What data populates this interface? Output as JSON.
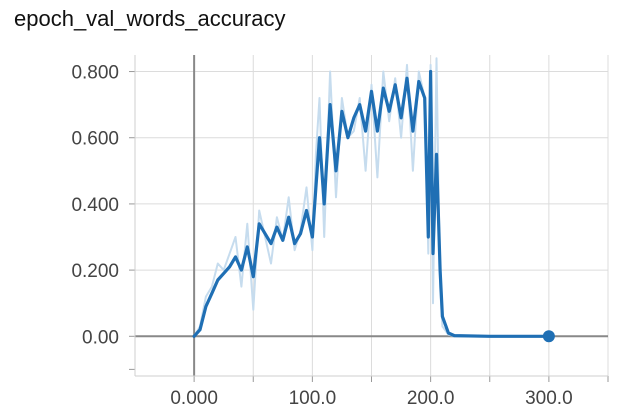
{
  "title": "epoch_val_words_accuracy",
  "colors": {
    "raw": "#c6dcee",
    "smoothed": "#1f6fb4",
    "axis": "#888888",
    "grid": "#dcdcdc"
  },
  "chart_data": {
    "type": "line",
    "title": "epoch_val_words_accuracy",
    "xlabel": "",
    "ylabel": "",
    "xlim": [
      -50,
      350
    ],
    "ylim": [
      -0.12,
      0.85
    ],
    "grid": true,
    "x_ticks": [
      0,
      50,
      100,
      150,
      200,
      250,
      300,
      350
    ],
    "x_tick_labels": [
      "0.000",
      "",
      "100.0",
      "",
      "200.0",
      "",
      "300.0",
      ""
    ],
    "y_ticks": [
      0,
      0.2,
      0.4,
      0.6,
      0.8
    ],
    "y_tick_labels": [
      "0.00",
      "0.200",
      "0.400",
      "0.600",
      "0.800"
    ],
    "series": [
      {
        "role": "raw",
        "x": [
          0,
          5,
          10,
          15,
          20,
          25,
          30,
          35,
          40,
          45,
          50,
          55,
          60,
          65,
          70,
          75,
          80,
          85,
          90,
          95,
          100,
          103,
          106,
          110,
          115,
          120,
          125,
          130,
          135,
          140,
          145,
          150,
          155,
          160,
          165,
          170,
          175,
          180,
          185,
          190,
          195,
          198,
          200,
          202,
          205,
          208,
          210,
          215,
          220,
          250,
          300
        ],
        "y": [
          0,
          0.03,
          0.12,
          0.15,
          0.22,
          0.2,
          0.25,
          0.3,
          0.15,
          0.34,
          0.08,
          0.38,
          0.3,
          0.22,
          0.36,
          0.29,
          0.42,
          0.26,
          0.32,
          0.45,
          0.26,
          0.55,
          0.72,
          0.3,
          0.8,
          0.42,
          0.72,
          0.6,
          0.62,
          0.72,
          0.5,
          0.76,
          0.48,
          0.8,
          0.65,
          0.78,
          0.6,
          0.82,
          0.5,
          0.8,
          0.72,
          0.25,
          0.82,
          0.1,
          0.84,
          0.15,
          0.03,
          0.005,
          0,
          0,
          0
        ]
      },
      {
        "role": "smoothed",
        "x": [
          0,
          5,
          10,
          15,
          20,
          25,
          30,
          35,
          40,
          45,
          50,
          55,
          60,
          65,
          70,
          75,
          80,
          85,
          90,
          95,
          100,
          103,
          106,
          110,
          115,
          120,
          125,
          130,
          135,
          140,
          145,
          150,
          155,
          160,
          165,
          170,
          175,
          180,
          185,
          190,
          195,
          198,
          200,
          202,
          205,
          208,
          210,
          215,
          220,
          250,
          300
        ],
        "y": [
          0,
          0.02,
          0.09,
          0.13,
          0.17,
          0.19,
          0.21,
          0.24,
          0.2,
          0.27,
          0.18,
          0.34,
          0.31,
          0.28,
          0.33,
          0.29,
          0.36,
          0.28,
          0.31,
          0.38,
          0.3,
          0.45,
          0.6,
          0.4,
          0.7,
          0.5,
          0.68,
          0.6,
          0.66,
          0.7,
          0.62,
          0.74,
          0.62,
          0.75,
          0.68,
          0.76,
          0.66,
          0.78,
          0.62,
          0.77,
          0.72,
          0.3,
          0.8,
          0.25,
          0.55,
          0.2,
          0.06,
          0.01,
          0.002,
          0,
          0
        ]
      }
    ],
    "last_point": {
      "x": 300,
      "y": 0
    }
  }
}
